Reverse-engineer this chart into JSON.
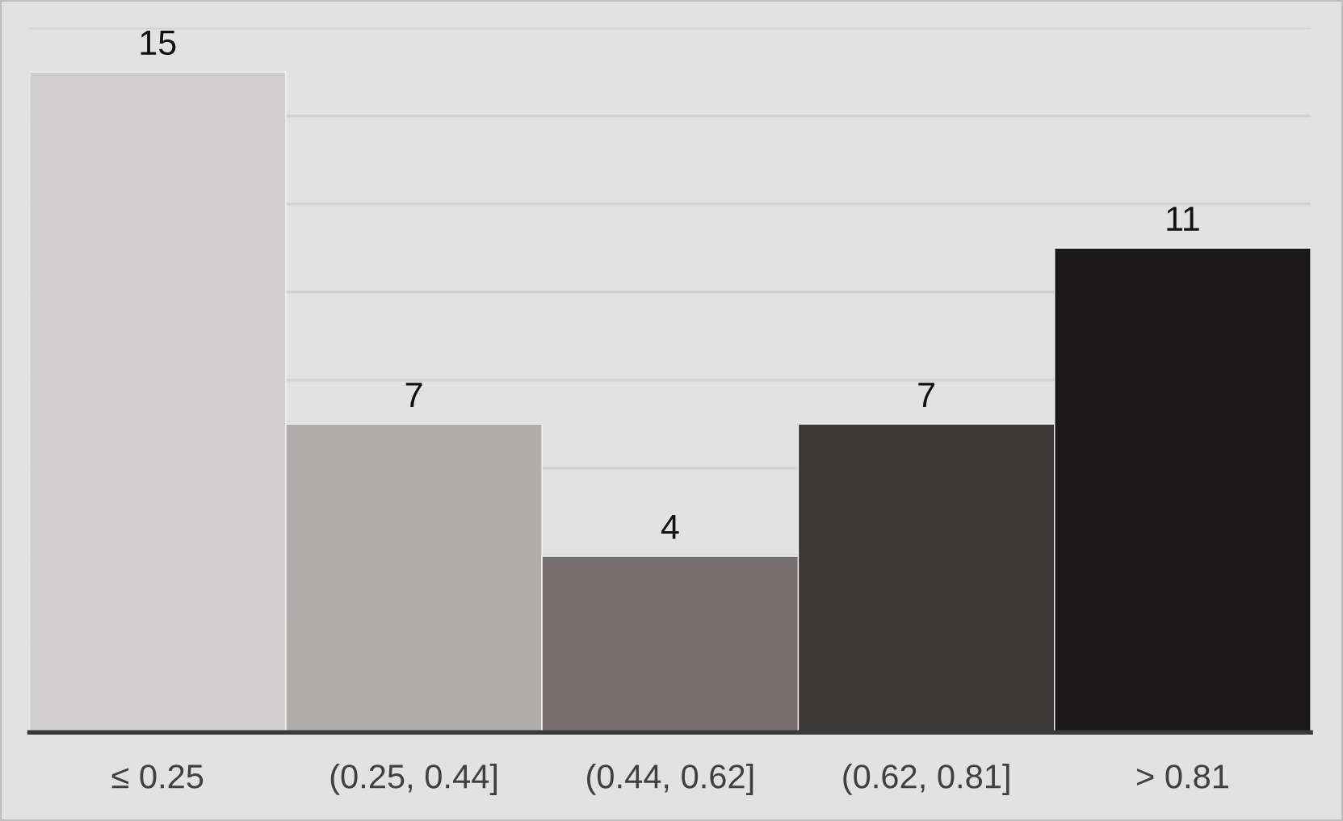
{
  "chart_data": {
    "type": "bar",
    "categories": [
      "≤ 0.25",
      "(0.25, 0.44]",
      "(0.44, 0.62]",
      "(0.62, 0.81]",
      "> 0.81"
    ],
    "values": [
      15,
      7,
      4,
      7,
      11
    ],
    "colors": [
      "#d0cecf",
      "#b0acab",
      "#767070",
      "#3c3737",
      "#1a1819"
    ],
    "ylim": [
      0,
      16
    ],
    "tick_labels": "x",
    "grid": "y",
    "legend": false,
    "data_labels": true
  }
}
